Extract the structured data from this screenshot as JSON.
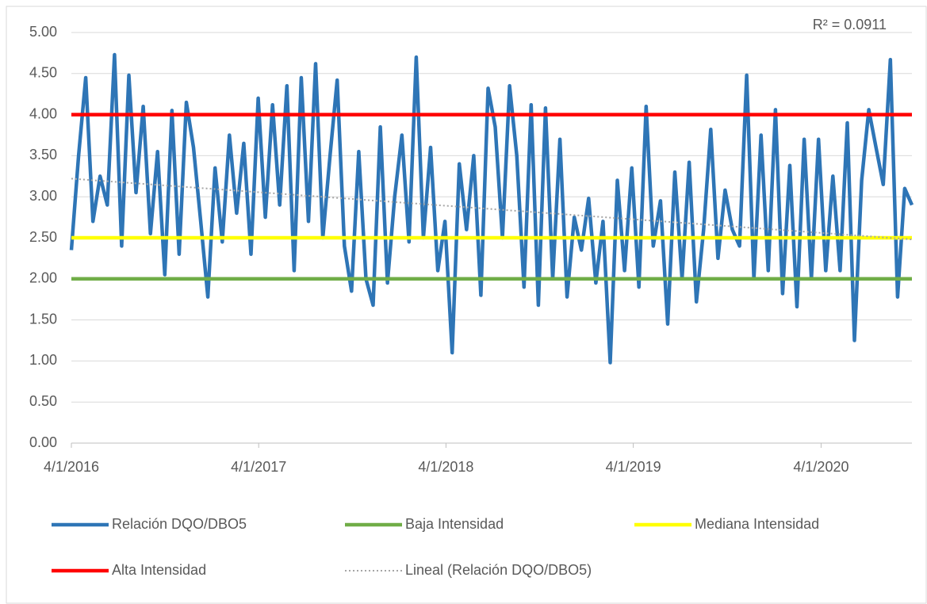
{
  "chart_data": {
    "type": "line",
    "annotation": "R² = 0.0911",
    "x": [
      "2016-04-01",
      "2016-04-15",
      "2016-04-29",
      "2016-05-13",
      "2016-05-27",
      "2016-06-10",
      "2016-06-24",
      "2016-07-08",
      "2016-07-22",
      "2016-08-05",
      "2016-08-19",
      "2016-09-02",
      "2016-09-16",
      "2016-09-30",
      "2016-10-14",
      "2016-10-28",
      "2016-11-11",
      "2016-11-25",
      "2016-12-09",
      "2016-12-23",
      "2017-01-06",
      "2017-01-20",
      "2017-02-03",
      "2017-02-17",
      "2017-03-03",
      "2017-03-17",
      "2017-03-31",
      "2017-04-14",
      "2017-04-28",
      "2017-05-12",
      "2017-05-26",
      "2017-06-09",
      "2017-06-23",
      "2017-07-07",
      "2017-07-21",
      "2017-08-04",
      "2017-08-18",
      "2017-09-01",
      "2017-09-15",
      "2017-09-29",
      "2017-10-13",
      "2017-10-27",
      "2017-11-10",
      "2017-11-24",
      "2017-12-08",
      "2017-12-22",
      "2018-01-05",
      "2018-01-19",
      "2018-02-02",
      "2018-02-16",
      "2018-03-02",
      "2018-03-16",
      "2018-03-30",
      "2018-04-13",
      "2018-04-27",
      "2018-05-11",
      "2018-05-25",
      "2018-06-08",
      "2018-06-22",
      "2018-07-06",
      "2018-07-20",
      "2018-08-03",
      "2018-08-17",
      "2018-08-31",
      "2018-09-14",
      "2018-09-28",
      "2018-10-12",
      "2018-10-26",
      "2018-11-09",
      "2018-11-23",
      "2018-12-07",
      "2018-12-21",
      "2019-01-04",
      "2019-01-18",
      "2019-02-01",
      "2019-02-15",
      "2019-03-01",
      "2019-03-15",
      "2019-03-29",
      "2019-04-12",
      "2019-04-26",
      "2019-05-10",
      "2019-05-24",
      "2019-06-07",
      "2019-06-21",
      "2019-07-05",
      "2019-07-19",
      "2019-08-02",
      "2019-08-16",
      "2019-08-30",
      "2019-09-13",
      "2019-09-27",
      "2019-10-11",
      "2019-10-25",
      "2019-11-08",
      "2019-11-22",
      "2019-12-06",
      "2019-12-20",
      "2020-01-03",
      "2020-01-17",
      "2020-01-31",
      "2020-02-14",
      "2020-02-28",
      "2020-03-13",
      "2020-03-27",
      "2020-04-10",
      "2020-04-24",
      "2020-05-08",
      "2020-05-22",
      "2020-06-05",
      "2020-06-19",
      "2020-07-03",
      "2020-07-17",
      "2020-07-31",
      "2020-08-14",
      "2020-08-28",
      "2020-09-11",
      "2020-09-25"
    ],
    "series": [
      {
        "name": "Relación DQO/DBO5",
        "color": "#2e75b6",
        "values": [
          2.35,
          3.5,
          4.45,
          2.7,
          3.25,
          2.9,
          4.73,
          2.4,
          4.48,
          3.05,
          4.1,
          2.55,
          3.55,
          2.05,
          4.05,
          2.3,
          4.15,
          3.6,
          2.7,
          1.78,
          3.35,
          2.45,
          3.75,
          2.8,
          3.65,
          2.3,
          4.2,
          2.75,
          4.12,
          2.9,
          4.35,
          2.1,
          4.45,
          2.7,
          4.62,
          2.5,
          3.5,
          4.42,
          2.4,
          1.85,
          3.55,
          2.0,
          1.68,
          3.85,
          1.95,
          3.0,
          3.75,
          2.45,
          4.7,
          2.5,
          3.6,
          2.1,
          2.7,
          1.1,
          3.4,
          2.6,
          3.5,
          1.8,
          4.32,
          3.85,
          2.5,
          4.35,
          3.5,
          1.9,
          4.12,
          1.68,
          4.08,
          2.0,
          3.7,
          1.78,
          2.75,
          2.35,
          2.98,
          1.95,
          2.7,
          0.98,
          3.2,
          2.1,
          3.35,
          1.9,
          4.1,
          2.4,
          2.95,
          1.45,
          3.3,
          2.0,
          3.42,
          1.72,
          2.6,
          3.82,
          2.25,
          3.08,
          2.6,
          2.4,
          4.48,
          2.0,
          3.75,
          2.1,
          4.06,
          1.82,
          3.38,
          1.66,
          3.7,
          2.0,
          3.7,
          2.1,
          3.25,
          2.1,
          3.9,
          1.25,
          3.2,
          4.06,
          3.6,
          3.15,
          4.67,
          1.78,
          3.1,
          2.9
        ]
      }
    ],
    "reference_lines": [
      {
        "name": "Baja Intensidad",
        "color": "#70ad47",
        "value": 2
      },
      {
        "name": "Mediana Intensidad",
        "color": "#ffff00",
        "value": 2.5
      },
      {
        "name": "Alta Intensidad",
        "color": "#ff0000",
        "value": 4
      }
    ],
    "trendline": {
      "name": "Lineal (Relación DQO/DBO5)",
      "color": "#a6a6a6",
      "values": [
        3.22,
        2.48
      ]
    },
    "xlim": [
      "2016-04-01",
      "2020-09-25"
    ],
    "xticks": [
      {
        "value": "2016-04-01",
        "label": "4/1/2016"
      },
      {
        "value": "2017-04-01",
        "label": "4/1/2017"
      },
      {
        "value": "2018-04-01",
        "label": "4/1/2018"
      },
      {
        "value": "2019-04-01",
        "label": "4/1/2019"
      },
      {
        "value": "2020-04-01",
        "label": "4/1/2020"
      }
    ],
    "ylim": [
      0,
      5
    ],
    "yticks": [
      {
        "value": 0,
        "label": "0.00"
      },
      {
        "value": 0.5,
        "label": "0.50"
      },
      {
        "value": 1,
        "label": "1.00"
      },
      {
        "value": 1.5,
        "label": "1.50"
      },
      {
        "value": 2,
        "label": "2.00"
      },
      {
        "value": 2.5,
        "label": "2.50"
      },
      {
        "value": 3,
        "label": "3.00"
      },
      {
        "value": 3.5,
        "label": "3.50"
      },
      {
        "value": 4,
        "label": "4.00"
      },
      {
        "value": 4.5,
        "label": "4.50"
      },
      {
        "value": 5,
        "label": "5.00"
      }
    ],
    "grid": true,
    "legend": "bottom"
  }
}
